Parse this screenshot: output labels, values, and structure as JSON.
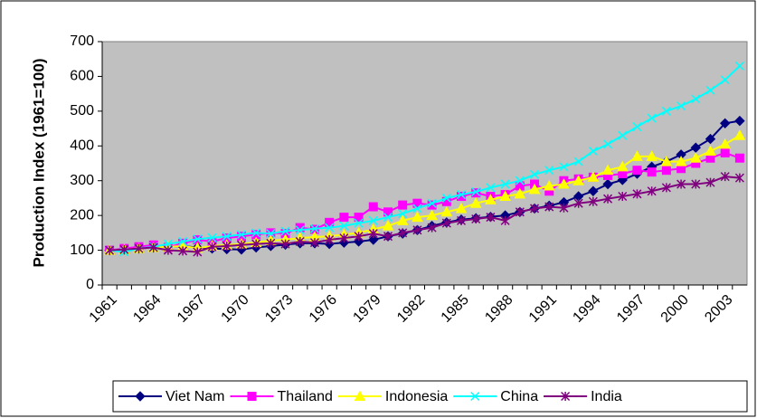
{
  "chart_data": {
    "type": "line",
    "y_label": "Production Index (1961=100)",
    "categories": [
      "1961",
      null,
      null,
      "1964",
      null,
      null,
      "1967",
      null,
      null,
      "1970",
      null,
      null,
      "1973",
      null,
      null,
      "1976",
      null,
      null,
      "1979",
      null,
      null,
      "1982",
      null,
      null,
      "1985",
      null,
      null,
      "1988",
      null,
      null,
      "1991",
      null,
      null,
      "1994",
      null,
      null,
      "1997",
      null,
      null,
      "2000",
      null,
      null,
      "2003",
      null
    ],
    "ylim": [
      0,
      700
    ],
    "yticks": [
      0,
      100,
      200,
      300,
      400,
      500,
      600,
      700
    ],
    "legend": "bottom",
    "series": [
      {
        "name": "Viet Nam",
        "color": "#000080",
        "marker": "diamond",
        "values": [
          100,
          102,
          105,
          108,
          110,
          112,
          108,
          105,
          103,
          102,
          108,
          112,
          116,
          120,
          120,
          118,
          122,
          125,
          130,
          140,
          148,
          158,
          170,
          180,
          188,
          192,
          196,
          200,
          210,
          220,
          228,
          238,
          255,
          270,
          290,
          302,
          320,
          340,
          355,
          375,
          395,
          420,
          465,
          472
        ]
      },
      {
        "name": "Thailand",
        "color": "#ff00ff",
        "marker": "square",
        "values": [
          100,
          105,
          110,
          115,
          108,
          120,
          130,
          125,
          135,
          140,
          145,
          150,
          148,
          165,
          160,
          180,
          195,
          195,
          225,
          210,
          230,
          235,
          230,
          240,
          255,
          265,
          255,
          260,
          285,
          290,
          270,
          300,
          305,
          310,
          315,
          320,
          330,
          325,
          330,
          335,
          350,
          365,
          380,
          365
        ]
      },
      {
        "name": "Indonesia",
        "color": "#ffff00",
        "marker": "triangle",
        "values": [
          100,
          102,
          105,
          108,
          110,
          112,
          106,
          112,
          115,
          118,
          122,
          128,
          130,
          135,
          138,
          140,
          145,
          150,
          160,
          170,
          185,
          195,
          200,
          210,
          220,
          235,
          245,
          255,
          262,
          275,
          285,
          290,
          300,
          310,
          330,
          340,
          370,
          370,
          355,
          355,
          365,
          385,
          405,
          430
        ]
      },
      {
        "name": "China",
        "color": "#00ffff",
        "marker": "x",
        "values": [
          100,
          95,
          105,
          110,
          118,
          125,
          132,
          136,
          140,
          145,
          150,
          148,
          155,
          158,
          162,
          165,
          170,
          178,
          185,
          195,
          205,
          220,
          235,
          250,
          260,
          268,
          280,
          290,
          300,
          318,
          330,
          340,
          355,
          385,
          405,
          430,
          455,
          480,
          500,
          515,
          535,
          560,
          590,
          630
        ]
      },
      {
        "name": "India",
        "color": "#800080",
        "marker": "star",
        "values": [
          100,
          102,
          105,
          108,
          100,
          98,
          95,
          110,
          112,
          115,
          118,
          120,
          118,
          125,
          122,
          130,
          135,
          140,
          148,
          140,
          150,
          158,
          165,
          178,
          185,
          190,
          195,
          185,
          210,
          220,
          225,
          222,
          235,
          240,
          248,
          255,
          262,
          270,
          280,
          290,
          290,
          295,
          312,
          308
        ]
      }
    ]
  }
}
